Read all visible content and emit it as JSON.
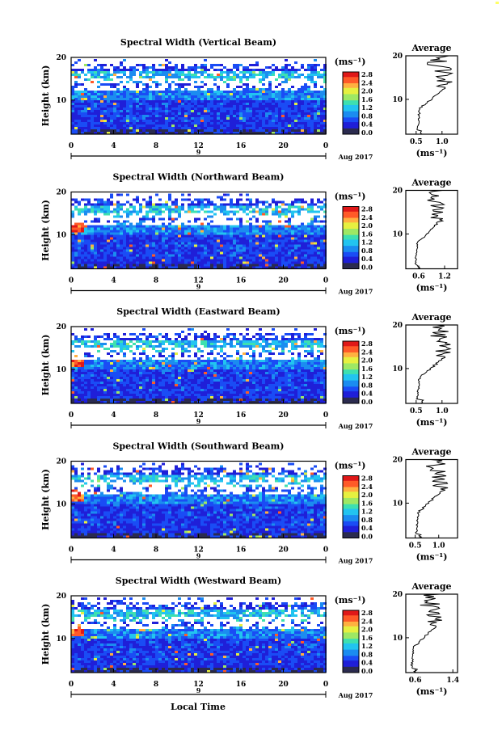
{
  "figure": {
    "x_axis_label": "Local Time",
    "date_label": "Aug 2017",
    "day_label": "9"
  },
  "colors": {
    "scale": [
      "#2b2b4f",
      "#1f1fd8",
      "#1a4cf5",
      "#1b8cf0",
      "#22c4f0",
      "#3ee0b0",
      "#9ee864",
      "#e6f040",
      "#ffb040",
      "#ff5a28",
      "#e01818"
    ]
  },
  "chart_data": [
    {
      "type": "heatmap",
      "title": "Spectral Width (Vertical Beam)",
      "xlabel": "",
      "ylabel": "Height (km)",
      "x_ticks": [
        "0",
        "4",
        "8",
        "12",
        "16",
        "20",
        "0"
      ],
      "xlim": [
        0,
        24
      ],
      "y_ticks": [
        "10",
        "20"
      ],
      "ylim": [
        2,
        20
      ],
      "colorbar": {
        "label": "(ms⁻¹)",
        "ticks": [
          "0.0",
          "0.4",
          "0.8",
          "1.2",
          "1.6",
          "2.0",
          "2.4",
          "2.8"
        ],
        "range": [
          0.0,
          3.0
        ]
      },
      "profile": {
        "title": "Average",
        "xlabel": "(ms⁻¹)",
        "x_ticks": [
          "0.5",
          "1.0"
        ],
        "xlim": [
          0.3,
          1.3
        ]
      }
    },
    {
      "type": "heatmap",
      "title": "Spectral Width (Northward Beam)",
      "xlabel": "",
      "ylabel": "Height (km)",
      "x_ticks": [
        "0",
        "4",
        "8",
        "12",
        "16",
        "20",
        "0"
      ],
      "xlim": [
        0,
        24
      ],
      "y_ticks": [
        "10",
        "20"
      ],
      "ylim": [
        2,
        20
      ],
      "colorbar": {
        "label": "(ms⁻¹)",
        "ticks": [
          "0.0",
          "0.4",
          "0.8",
          "1.2",
          "1.6",
          "2.0",
          "2.4",
          "2.8"
        ],
        "range": [
          0.0,
          3.0
        ]
      },
      "profile": {
        "title": "Average",
        "xlabel": "(ms⁻¹)",
        "x_ticks": [
          "0.6",
          "1.2"
        ],
        "xlim": [
          0.3,
          1.5
        ]
      }
    },
    {
      "type": "heatmap",
      "title": "Spectral Width (Eastward Beam)",
      "xlabel": "",
      "ylabel": "Height (km)",
      "x_ticks": [
        "0",
        "4",
        "8",
        "12",
        "16",
        "20",
        "0"
      ],
      "xlim": [
        0,
        24
      ],
      "y_ticks": [
        "10",
        "20"
      ],
      "ylim": [
        2,
        20
      ],
      "colorbar": {
        "label": "(ms⁻¹)",
        "ticks": [
          "0.0",
          "0.4",
          "0.8",
          "1.2",
          "1.6",
          "2.0",
          "2.4",
          "2.8"
        ],
        "range": [
          0.0,
          3.0
        ]
      },
      "profile": {
        "title": "Average",
        "xlabel": "(ms⁻¹)",
        "x_ticks": [
          "0.5",
          "1.0"
        ],
        "xlim": [
          0.3,
          1.3
        ]
      }
    },
    {
      "type": "heatmap",
      "title": "Spectral Width (Southward Beam)",
      "xlabel": "",
      "ylabel": "Height (km)",
      "x_ticks": [
        "0",
        "4",
        "8",
        "12",
        "16",
        "20",
        "0"
      ],
      "xlim": [
        0,
        24
      ],
      "y_ticks": [
        "10",
        "20"
      ],
      "ylim": [
        2,
        20
      ],
      "colorbar": {
        "label": "(ms⁻¹)",
        "ticks": [
          "0.0",
          "0.4",
          "0.8",
          "1.2",
          "1.6",
          "2.0",
          "2.4",
          "2.8"
        ],
        "range": [
          0.0,
          3.0
        ]
      },
      "profile": {
        "title": "Average",
        "xlabel": "(ms⁻¹)",
        "x_ticks": [
          "0.5",
          "1.0"
        ],
        "xlim": [
          0.3,
          1.4
        ]
      }
    },
    {
      "type": "heatmap",
      "title": "Spectral Width (Westward Beam)",
      "xlabel": "",
      "ylabel": "Height (km)",
      "x_ticks": [
        "0",
        "4",
        "8",
        "12",
        "16",
        "20",
        "0"
      ],
      "xlim": [
        0,
        24
      ],
      "y_ticks": [
        "10",
        "20"
      ],
      "ylim": [
        2,
        20
      ],
      "colorbar": {
        "label": "(ms⁻¹)",
        "ticks": [
          "0.0",
          "0.4",
          "0.8",
          "1.2",
          "1.6",
          "2.0",
          "2.4",
          "2.8"
        ],
        "range": [
          0.0,
          3.0
        ]
      },
      "profile": {
        "title": "Average",
        "xlabel": "(ms⁻¹)",
        "x_ticks": [
          "0.6",
          "1.4"
        ],
        "xlim": [
          0.4,
          1.5
        ]
      }
    }
  ]
}
